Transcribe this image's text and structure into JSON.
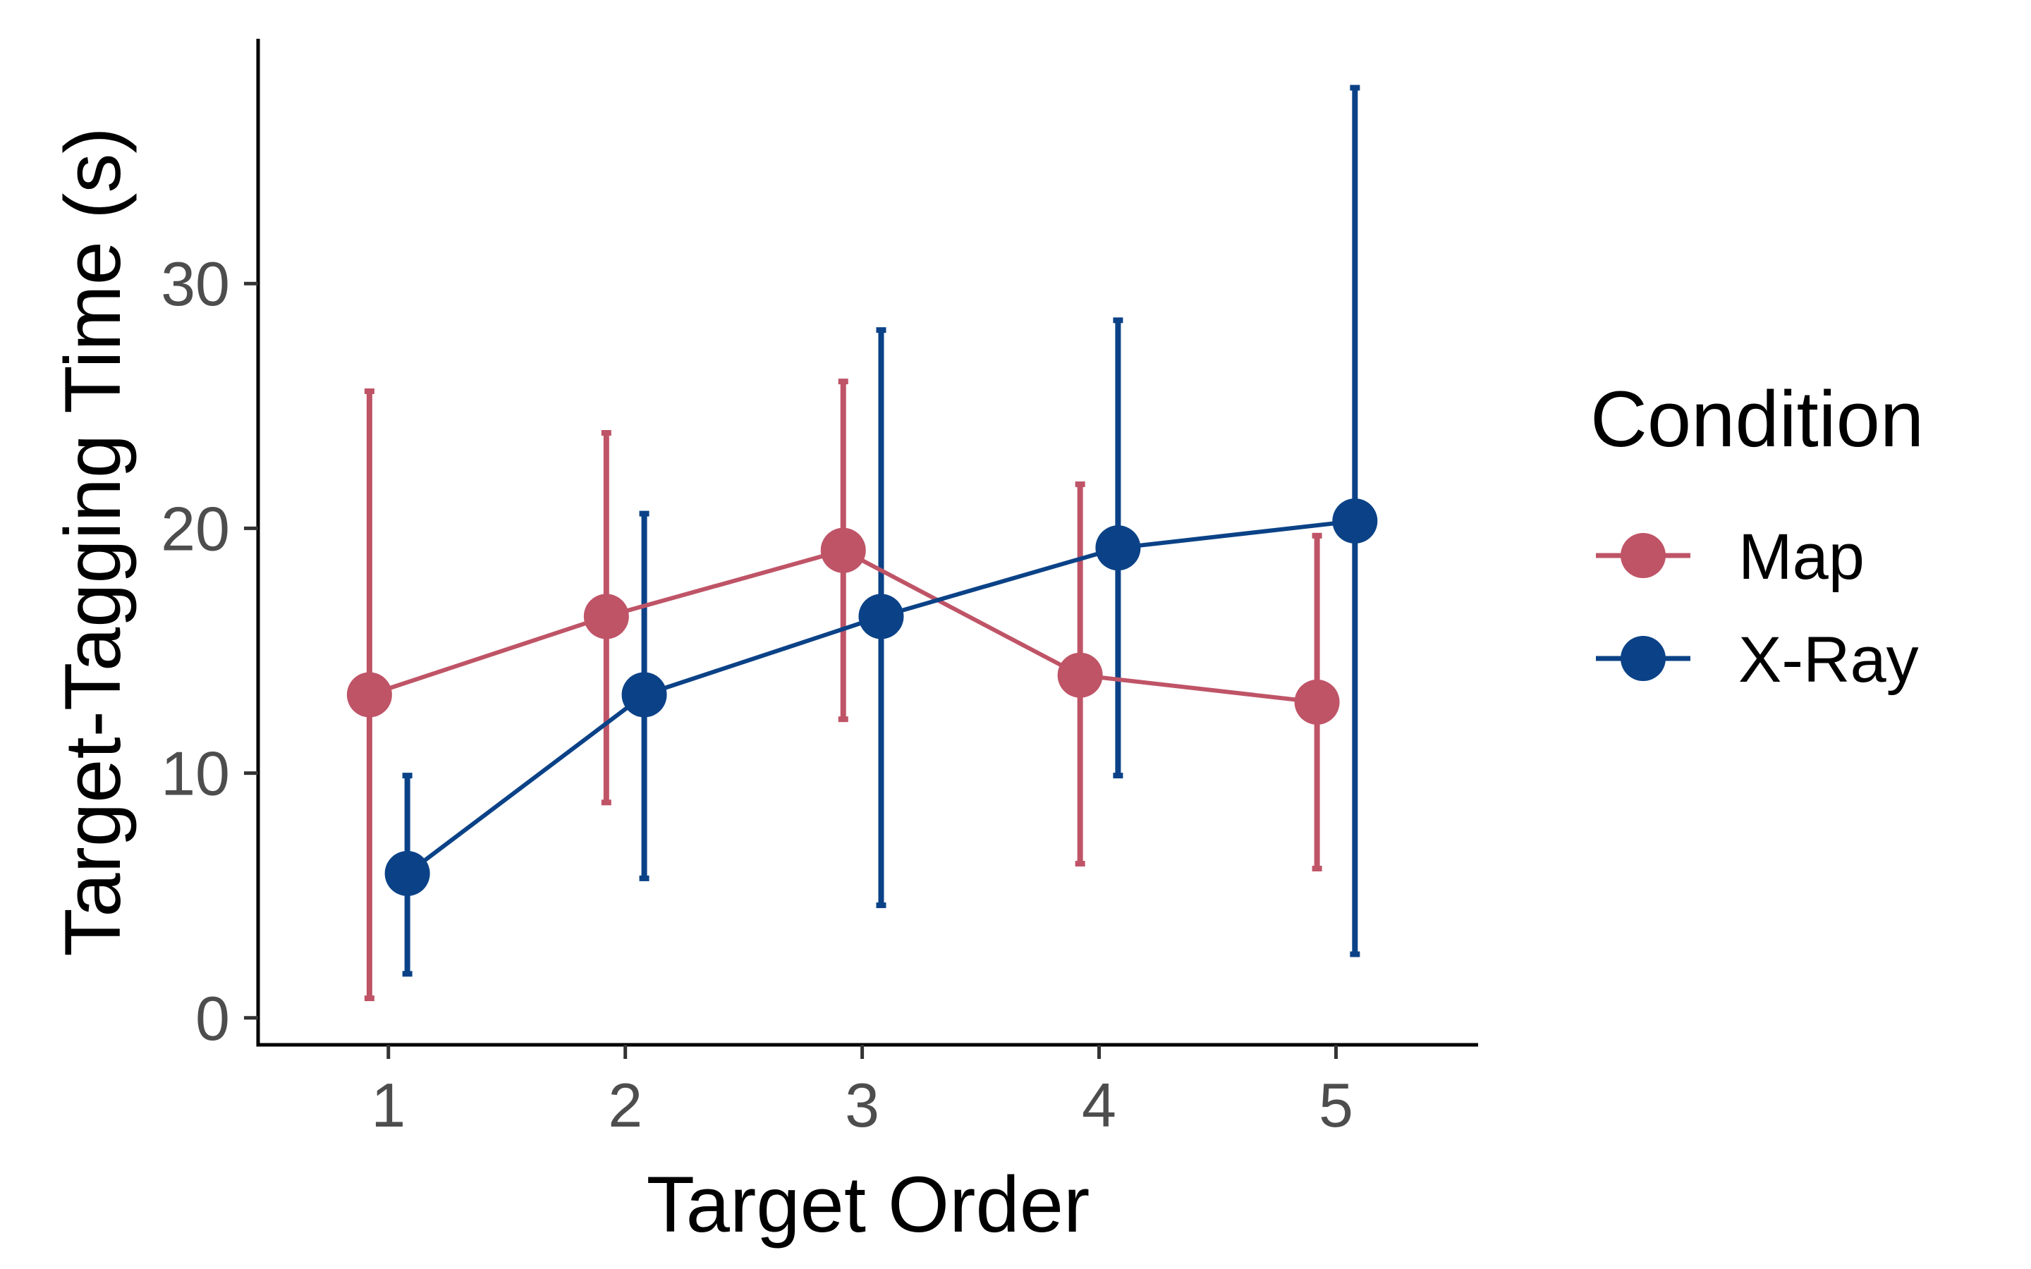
{
  "chart_data": {
    "type": "line",
    "title": "",
    "xlabel": "Target Order",
    "ylabel": "Target-Tagging Time (s)",
    "x": [
      1,
      2,
      3,
      4,
      5
    ],
    "x_ticks": [
      "1",
      "2",
      "3",
      "4",
      "5"
    ],
    "y_ticks": [
      "0",
      "10",
      "20",
      "30"
    ],
    "xlim": [
      0.45,
      5.6
    ],
    "ylim": [
      -1.1,
      40
    ],
    "grid": false,
    "legend": {
      "title": "Condition",
      "placement": "right"
    },
    "series": [
      {
        "name": "Map",
        "color": "#BF5467",
        "values": [
          13.2,
          16.4,
          19.1,
          14.0,
          12.9
        ],
        "error_low": [
          0.8,
          8.8,
          12.2,
          6.3,
          6.1
        ],
        "error_high": [
          25.6,
          23.9,
          26.0,
          21.8,
          19.7
        ]
      },
      {
        "name": "X-Ray",
        "color": "#0B4287",
        "values": [
          5.9,
          13.2,
          16.4,
          19.2,
          20.3
        ],
        "error_low": [
          1.8,
          5.7,
          4.6,
          9.9,
          2.6
        ],
        "error_high": [
          9.9,
          20.6,
          28.1,
          28.5,
          38.0
        ]
      }
    ]
  }
}
